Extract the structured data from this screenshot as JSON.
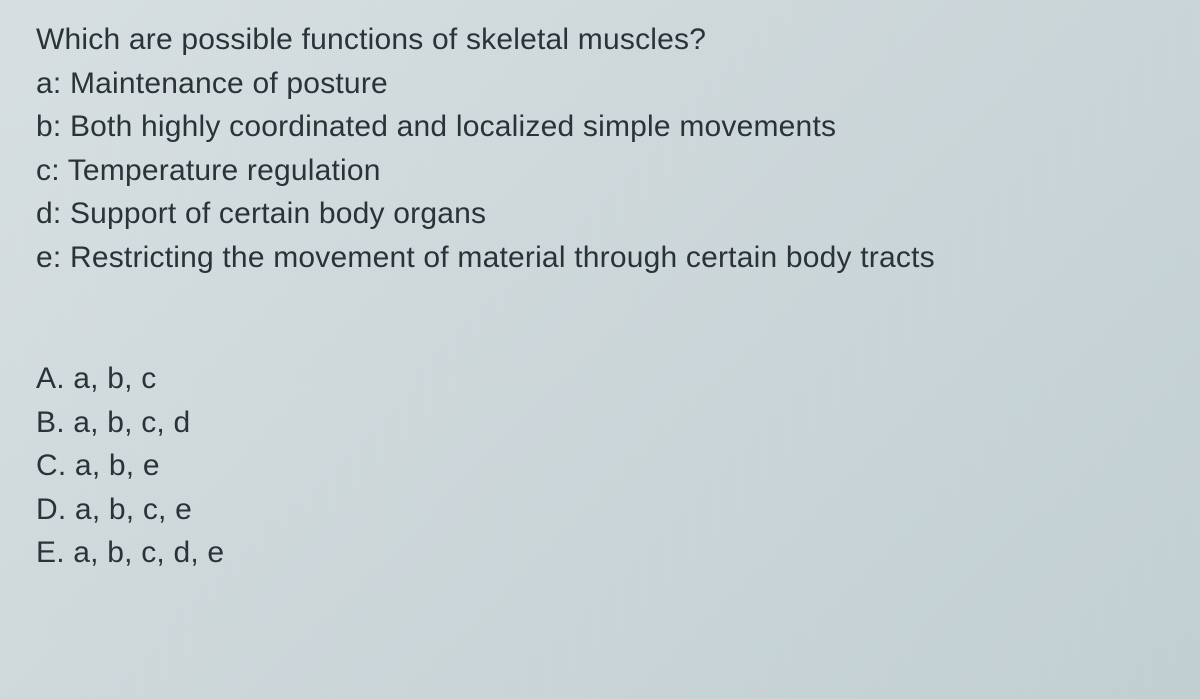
{
  "question": {
    "prompt": "Which are possible functions of skeletal muscles?",
    "stems": {
      "a": "a: Maintenance of posture",
      "b": "b: Both highly coordinated and localized simple movements",
      "c": "c: Temperature regulation",
      "d": "d: Support of certain body organs",
      "e": "e: Restricting the movement of material through certain body tracts"
    },
    "options": {
      "A": "A. a, b, c",
      "B": "B. a, b, c, d",
      "C": "C. a, b, e",
      "D": "D. a, b, c, e",
      "E": "E. a, b, c, d, e"
    }
  },
  "style": {
    "text_color": "#2a3438",
    "background_gradient_start": "#d8e0e2",
    "background_gradient_mid": "#cdd8db",
    "background_gradient_end": "#c2d0d4",
    "font_size_pt": 22,
    "line_height": 1.45,
    "font_family": "Segoe UI"
  }
}
